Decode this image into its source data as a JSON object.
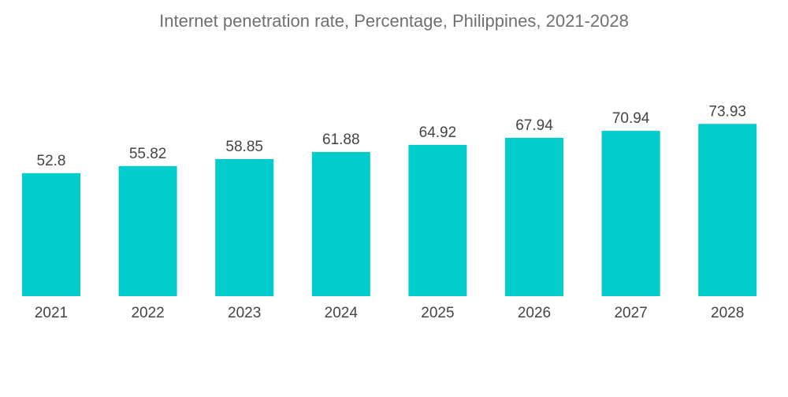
{
  "chart_data": {
    "type": "bar",
    "title": "Internet penetration rate, Percentage, Philippines, 2021-2028",
    "categories": [
      "2021",
      "2022",
      "2023",
      "2024",
      "2025",
      "2026",
      "2027",
      "2028"
    ],
    "values": [
      52.8,
      55.82,
      58.85,
      61.88,
      64.92,
      67.94,
      70.94,
      73.93
    ],
    "value_labels": [
      "52.8",
      "55.82",
      "58.85",
      "61.88",
      "64.92",
      "67.94",
      "70.94",
      "73.93"
    ],
    "xlabel": "",
    "ylabel": "",
    "ylim": [
      0,
      75
    ],
    "grid": false,
    "data_labels": true,
    "colors": {
      "bar": "#00CCCC",
      "text": "#444444",
      "title": "#6F6F6F"
    }
  }
}
